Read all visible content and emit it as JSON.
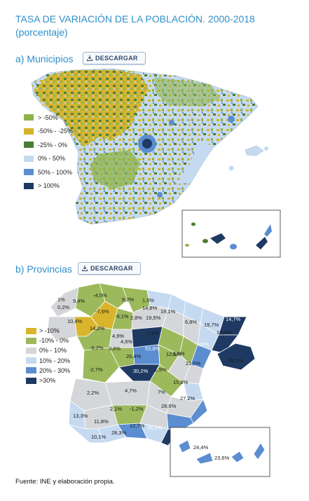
{
  "title": "TASA DE VARIACIÓN DE LA POBLACIÓN. 2000-2018",
  "subtitle": "(porcentaje)",
  "section_a": {
    "label": "a) Municipios",
    "button": "DESCARGAR"
  },
  "section_b": {
    "label": "b) Provincias",
    "button": "DESCARGAR"
  },
  "legend_a": [
    {
      "label": "> -50%",
      "color": "#8db34a"
    },
    {
      "label": "-50% - -25%",
      "color": "#d4b32a"
    },
    {
      "label": "-25% - 0%",
      "color": "#4a7d35"
    },
    {
      "label": "0% - 50%",
      "color": "#c5daf0"
    },
    {
      "label": "50% - 100%",
      "color": "#5b8dd0"
    },
    {
      "label": "> 100%",
      "color": "#1e3a63"
    }
  ],
  "legend_b": [
    {
      "label": "> -10%",
      "color": "#d8b52c"
    },
    {
      "label": "-10% - 0%",
      "color": "#9cb95c"
    },
    {
      "label": "0% - 10%",
      "color": "#d4d6d9"
    },
    {
      "label": "10% - 20%",
      "color": "#c5daf0"
    },
    {
      "label": "20% - 30%",
      "color": "#5b8dd0"
    },
    {
      "label": ">30%",
      "color": "#1e3a63"
    }
  ],
  "province_labels": [
    "1%",
    "9,4%",
    "-4,5%",
    "9,2%",
    "1,5%",
    "14,8%",
    "19,1%",
    "0,2%",
    "-7,6%",
    "-9,1%",
    "2,8%",
    "19,5%",
    "10,4%",
    "14,2%",
    "6,8%",
    "19,7%",
    "14,7%",
    "19,4%",
    "4,6%",
    "-2,5%",
    "4,9%",
    "-5,2%",
    "3,6%",
    "26,4%",
    "53,8%",
    "-1,4%",
    "33%",
    "21,6%",
    "12,6%",
    "-2,7%",
    "30,2%",
    "-1,9%",
    "33,5%",
    "15,8%",
    "2,2%",
    "4,7%",
    "7%",
    "27,2%",
    "2,1%",
    "-1,2%",
    "28,6%",
    "13,3%",
    "11,8%",
    "12,7%",
    "36,9%",
    "10,1%",
    "28,3%",
    "24,4%",
    "23,6%"
  ],
  "footer": "Fuente: INE y elaboración propia."
}
